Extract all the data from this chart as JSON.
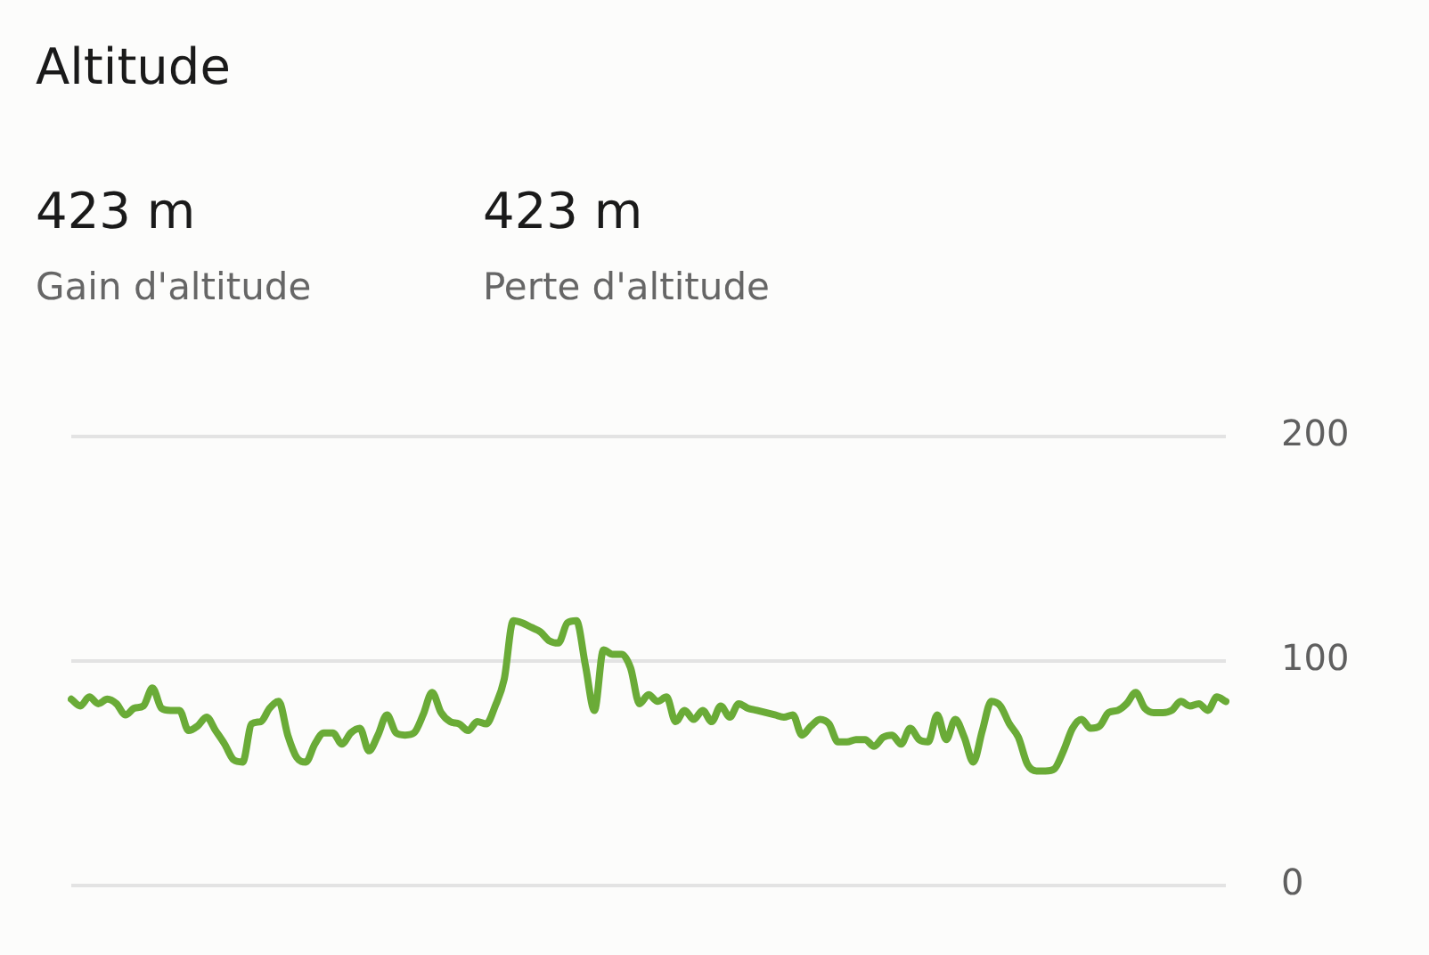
{
  "chart_data": {
    "type": "line",
    "title": "Altitude",
    "annotations": [
      "423 m",
      "Gain d'altitude",
      "423 m",
      "Perte d'altitude"
    ],
    "categories": [
      null,
      null,
      null,
      null,
      null,
      null,
      null,
      null,
      null,
      null,
      null,
      null,
      null,
      null,
      null,
      null,
      null,
      null,
      null,
      null,
      null,
      null,
      null,
      null,
      null,
      null,
      null,
      null,
      null,
      null,
      null,
      null,
      null,
      null,
      null,
      null,
      null,
      null,
      null,
      null,
      null,
      null,
      null,
      null,
      null,
      null,
      null,
      null,
      null,
      null,
      null,
      null,
      null,
      null,
      null,
      null,
      null,
      null,
      null,
      null,
      null,
      null,
      null,
      null,
      null,
      null,
      null,
      null,
      null,
      null,
      null,
      null,
      null,
      null,
      null,
      null,
      null,
      null,
      null,
      null,
      null,
      null,
      null,
      null,
      null,
      null,
      null,
      null,
      null,
      null,
      null,
      null,
      null,
      null,
      null,
      null,
      null,
      null,
      null,
      null,
      null,
      null,
      null,
      null,
      null,
      null,
      null,
      null,
      null,
      null,
      null,
      null,
      null,
      null,
      null,
      null,
      null,
      null,
      null,
      null,
      null,
      null,
      null,
      null,
      null,
      null,
      null,
      null,
      null
    ],
    "values": [
      83,
      80,
      84,
      81,
      83,
      81,
      76,
      79,
      80,
      88,
      79,
      78,
      78,
      69,
      71,
      75,
      69,
      63,
      56,
      55,
      72,
      73,
      79,
      82,
      67,
      57,
      55,
      63,
      68,
      68,
      63,
      68,
      70,
      60,
      67,
      76,
      68,
      67,
      68,
      76,
      86,
      77,
      73,
      72,
      69,
      73,
      72,
      80,
      92,
      118,
      117,
      115,
      113,
      109,
      108,
      117,
      118,
      98,
      78,
      105,
      103,
      103,
      97,
      81,
      85,
      82,
      84,
      73,
      78,
      74,
      78,
      73,
      80,
      75,
      81,
      79,
      78,
      77,
      76,
      75,
      76,
      67,
      71,
      74,
      72,
      64,
      64,
      65,
      65,
      62,
      66,
      67,
      63,
      70,
      65,
      64,
      76,
      65,
      74,
      66,
      55,
      69,
      82,
      80,
      72,
      66,
      54,
      51,
      51,
      52,
      60,
      70,
      74,
      70,
      71,
      77,
      78,
      81,
      86,
      79,
      77,
      77,
      78,
      82,
      80,
      81,
      78,
      84,
      82
    ],
    "color": "#6aab37",
    "ylim": [
      0,
      200
    ],
    "yticks": [
      0,
      100,
      200
    ],
    "grid": "y",
    "tick_labels": "y",
    "marker": "none",
    "line_style": "solid"
  }
}
